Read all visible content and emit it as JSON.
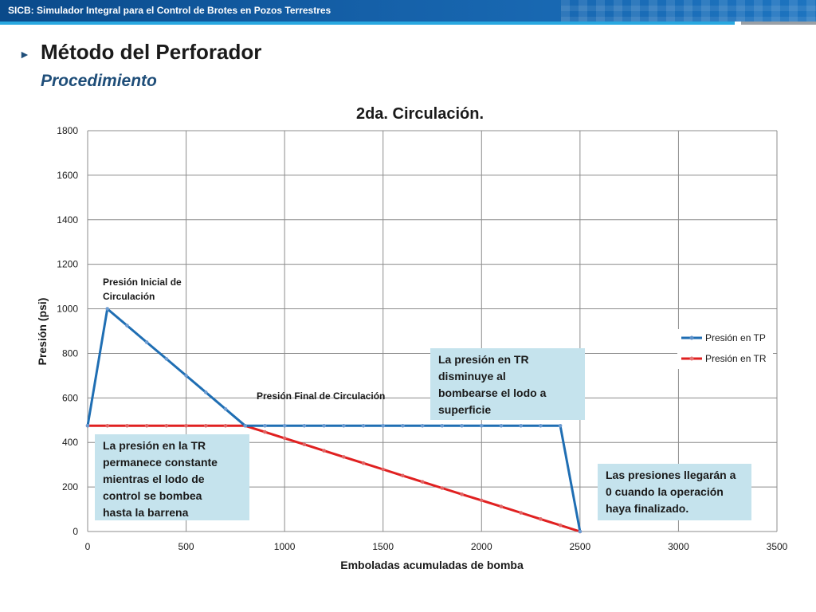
{
  "header": {
    "title": "SICB: Simulador Integral para el Control de Brotes en Pozos Terrestres"
  },
  "page": {
    "bullet": "►",
    "title": "Método del Perforador",
    "subtitle": "Procedimiento"
  },
  "chart_data": {
    "type": "line",
    "title": "2da. Circulación.",
    "xlabel": "Emboladas acumuladas de bomba",
    "ylabel": "Presión (psi)",
    "xlim": [
      0,
      3500
    ],
    "ylim": [
      0,
      1800
    ],
    "xticks": [
      0,
      500,
      1000,
      1500,
      2000,
      2500,
      3000,
      3500
    ],
    "yticks": [
      0,
      200,
      400,
      600,
      800,
      1000,
      1200,
      1400,
      1600,
      1800
    ],
    "grid": true,
    "legend_position": "right",
    "series": [
      {
        "name": "Presión en TP",
        "color": "#1f6eb3",
        "x": [
          0,
          100,
          200,
          300,
          400,
          500,
          600,
          700,
          800,
          900,
          1000,
          1100,
          1200,
          1300,
          1400,
          1500,
          1600,
          1700,
          1800,
          1900,
          2000,
          2100,
          2200,
          2300,
          2400,
          2500
        ],
        "y": [
          475,
          1000,
          925,
          850,
          775,
          700,
          625,
          550,
          475,
          475,
          475,
          475,
          475,
          475,
          475,
          475,
          475,
          475,
          475,
          475,
          475,
          475,
          475,
          475,
          475,
          0
        ]
      },
      {
        "name": "Presión en TR",
        "color": "#e02020",
        "x": [
          0,
          100,
          200,
          300,
          400,
          500,
          600,
          700,
          800,
          900,
          1000,
          1100,
          1200,
          1300,
          1400,
          1500,
          1600,
          1700,
          1800,
          1900,
          2000,
          2100,
          2200,
          2300,
          2400,
          2500
        ],
        "y": [
          475,
          475,
          475,
          475,
          475,
          475,
          475,
          475,
          475,
          447,
          419,
          391,
          363,
          335,
          307,
          279,
          251,
          223,
          195,
          167,
          140,
          112,
          84,
          56,
          28,
          0
        ]
      }
    ],
    "annotations": [
      {
        "id": "inicial",
        "line1": "Presión Inicial de",
        "line2": "Circulación"
      },
      {
        "id": "final",
        "text": "Presión Final de Circulación"
      }
    ],
    "callouts": [
      {
        "id": "tr-drop",
        "lines": [
          "La presión en TR",
          "disminuye al",
          "bombearse el lodo a",
          "superficie"
        ]
      },
      {
        "id": "tr-constant",
        "lines": [
          "La presión en la TR",
          "permanece constante",
          "mientras el lodo de",
          "control se bombea",
          "hasta la barrena"
        ]
      },
      {
        "id": "zero",
        "lines": [
          "Las presiones llegarán a",
          "0 cuando la operación",
          "haya finalizado."
        ]
      }
    ]
  }
}
